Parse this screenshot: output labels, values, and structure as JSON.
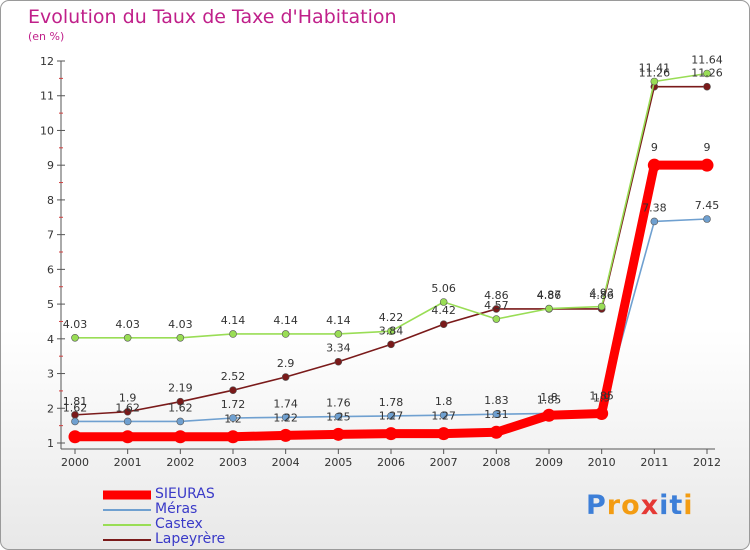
{
  "header": {
    "title": "Evolution du Taux de Taxe d'Habitation",
    "subtitle": "(en %)"
  },
  "logo": {
    "letters": [
      "P",
      "r",
      "o",
      "x",
      "i",
      "t",
      "i"
    ],
    "colors": [
      "#3d7fd8",
      "#f39c12",
      "#f39c12",
      "#e53935",
      "#3d7fd8",
      "#3d7fd8",
      "#f39c12"
    ]
  },
  "chart_data": {
    "type": "line",
    "title": "Evolution du Taux de Taxe d'Habitation",
    "subtitle": "(en %)",
    "xlabel": "",
    "ylabel": "",
    "x": [
      "2000",
      "2001",
      "2002",
      "2003",
      "2004",
      "2005",
      "2006",
      "2007",
      "2008",
      "2009",
      "2010",
      "2011",
      "2012"
    ],
    "ylim": [
      1,
      12
    ],
    "yticks": [
      "1",
      "2",
      "3",
      "4",
      "5",
      "6",
      "7",
      "8",
      "9",
      "10",
      "11",
      "12"
    ],
    "grid": false,
    "legend_position": "bottom-left",
    "series": [
      {
        "name": "SIEURAS",
        "color": "#ff0000",
        "values": [
          1.18,
          1.18,
          1.18,
          1.18,
          1.22,
          1.25,
          1.27,
          1.27,
          1.31,
          1.8,
          1.85,
          9,
          9
        ],
        "labels": [
          "",
          "",
          "",
          "1.2",
          "1.22",
          "1.25",
          "1.27",
          "1.27",
          "1.31",
          "1.8",
          "1.85",
          "9",
          "9"
        ]
      },
      {
        "name": "Méras",
        "color": "#6fa0d0",
        "values": [
          1.62,
          1.62,
          1.62,
          1.72,
          1.74,
          1.76,
          1.78,
          1.8,
          1.83,
          1.85,
          1.9,
          7.38,
          7.45
        ],
        "labels": [
          "1.62",
          "1.62",
          "1.62",
          "1.72",
          "1.74",
          "1.76",
          "1.78",
          "1.8",
          "1.83",
          "1.85",
          "1.9",
          "7.38",
          "7.45"
        ]
      },
      {
        "name": "Castex",
        "color": "#99dd55",
        "values": [
          4.03,
          4.03,
          4.03,
          4.14,
          4.14,
          4.14,
          4.22,
          5.06,
          4.57,
          4.87,
          4.93,
          11.41,
          11.64
        ],
        "labels": [
          "4.03",
          "4.03",
          "4.03",
          "4.14",
          "4.14",
          "4.14",
          "4.22",
          "5.06",
          "4.57",
          "4.87",
          "4.93",
          "11.41",
          "11.64"
        ]
      },
      {
        "name": "Lapeyrère",
        "color": "#7a1a1a",
        "values": [
          1.81,
          1.9,
          2.19,
          2.52,
          2.9,
          3.34,
          3.84,
          4.42,
          4.86,
          4.86,
          4.86,
          11.26,
          11.26
        ],
        "labels": [
          "1.81",
          "1.9",
          "2.19",
          "2.52",
          "2.9",
          "3.34",
          "3.84",
          "4.42",
          "4.86",
          "4.86",
          "4.86",
          "11.26",
          "11.26"
        ]
      }
    ]
  }
}
